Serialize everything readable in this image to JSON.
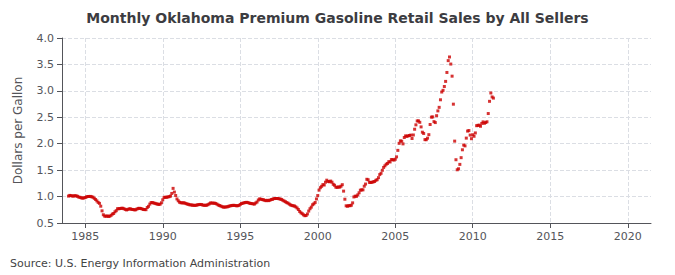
{
  "chart_data": {
    "type": "scatter",
    "title": "Monthly Oklahoma Premium Gasoline Retail Sales by All Sellers",
    "ylabel": "Dollars per Gallon",
    "annotation": "Source: U.S. Energy Information Administration",
    "color": "#CC0000",
    "marker": "square",
    "grid": true,
    "xlim": [
      1983.5,
      2021.5
    ],
    "ylim": [
      0.5,
      4.0
    ],
    "xticks": [
      1985,
      1990,
      1995,
      2000,
      2005,
      2010,
      2015,
      2020
    ],
    "yticks": [
      0.5,
      {
        "value": 1.0,
        "label": "1.0"
      },
      1.5,
      {
        "value": 2.0,
        "label": "2.0"
      },
      2.5,
      {
        "value": 3.0,
        "label": "3.0"
      },
      3.5,
      {
        "value": 4.0,
        "label": "4.0"
      }
    ],
    "x": [
      1983.917,
      1984.0,
      1984.083,
      1984.167,
      1984.25,
      1984.333,
      1984.417,
      1984.5,
      1984.583,
      1984.667,
      1984.75,
      1984.833,
      1984.917,
      1985.0,
      1985.083,
      1985.167,
      1985.25,
      1985.333,
      1985.417,
      1985.5,
      1985.583,
      1985.667,
      1985.75,
      1985.833,
      1985.917,
      1986.0,
      1986.083,
      1986.167,
      1986.25,
      1986.333,
      1986.417,
      1986.5,
      1986.583,
      1986.667,
      1986.75,
      1986.833,
      1986.917,
      1987.0,
      1987.083,
      1987.167,
      1987.25,
      1987.333,
      1987.417,
      1987.5,
      1987.583,
      1987.667,
      1987.75,
      1987.833,
      1987.917,
      1988.0,
      1988.083,
      1988.167,
      1988.25,
      1988.333,
      1988.417,
      1988.5,
      1988.583,
      1988.667,
      1988.75,
      1988.833,
      1988.917,
      1989.0,
      1989.083,
      1989.167,
      1989.25,
      1989.333,
      1989.417,
      1989.5,
      1989.583,
      1989.667,
      1989.75,
      1989.833,
      1989.917,
      1990.0,
      1990.083,
      1990.167,
      1990.25,
      1990.333,
      1990.417,
      1990.5,
      1990.583,
      1990.667,
      1990.75,
      1990.833,
      1990.917,
      1991.0,
      1991.083,
      1991.167,
      1991.25,
      1991.333,
      1991.417,
      1991.5,
      1991.583,
      1991.667,
      1991.75,
      1991.833,
      1991.917,
      1992.0,
      1992.083,
      1992.167,
      1992.25,
      1992.333,
      1992.417,
      1992.5,
      1992.583,
      1992.667,
      1992.75,
      1992.833,
      1992.917,
      1993.0,
      1993.083,
      1993.167,
      1993.25,
      1993.333,
      1993.417,
      1993.5,
      1993.583,
      1993.667,
      1993.75,
      1993.833,
      1993.917,
      1994.0,
      1994.083,
      1994.167,
      1994.25,
      1994.333,
      1994.417,
      1994.5,
      1994.583,
      1994.667,
      1994.75,
      1994.833,
      1994.917,
      1995.0,
      1995.083,
      1995.167,
      1995.25,
      1995.333,
      1995.417,
      1995.5,
      1995.583,
      1995.667,
      1995.75,
      1995.833,
      1995.917,
      1996.0,
      1996.083,
      1996.167,
      1996.25,
      1996.333,
      1996.417,
      1996.5,
      1996.583,
      1996.667,
      1996.75,
      1996.833,
      1996.917,
      1997.0,
      1997.083,
      1997.167,
      1997.25,
      1997.333,
      1997.417,
      1997.5,
      1997.583,
      1997.667,
      1997.75,
      1997.833,
      1997.917,
      1998.0,
      1998.083,
      1998.167,
      1998.25,
      1998.333,
      1998.417,
      1998.5,
      1998.583,
      1998.667,
      1998.75,
      1998.833,
      1998.917,
      1999.0,
      1999.083,
      1999.167,
      1999.25,
      1999.333,
      1999.417,
      1999.5,
      1999.583,
      1999.667,
      1999.75,
      1999.833,
      1999.917,
      2000.0,
      2000.083,
      2000.167,
      2000.25,
      2000.333,
      2000.417,
      2000.5,
      2000.583,
      2000.667,
      2000.75,
      2000.833,
      2000.917,
      2001.0,
      2001.083,
      2001.167,
      2001.25,
      2001.333,
      2001.417,
      2001.5,
      2001.583,
      2001.667,
      2001.75,
      2001.833,
      2001.917,
      2002.0,
      2002.083,
      2002.167,
      2002.25,
      2002.333,
      2002.417,
      2002.5,
      2002.583,
      2002.667,
      2002.75,
      2002.833,
      2002.917,
      2003.0,
      2003.083,
      2003.167,
      2003.25,
      2003.333,
      2003.417,
      2003.5,
      2003.583,
      2003.667,
      2003.75,
      2003.833,
      2003.917,
      2004.0,
      2004.083,
      2004.167,
      2004.25,
      2004.333,
      2004.417,
      2004.5,
      2004.583,
      2004.667,
      2004.75,
      2004.833,
      2004.917,
      2005.0,
      2005.083,
      2005.167,
      2005.25,
      2005.333,
      2005.417,
      2005.5,
      2005.583,
      2005.667,
      2005.75,
      2005.833,
      2005.917,
      2006.0,
      2006.083,
      2006.167,
      2006.25,
      2006.333,
      2006.417,
      2006.5,
      2006.583,
      2006.667,
      2006.75,
      2006.833,
      2006.917,
      2007.0,
      2007.083,
      2007.167,
      2007.25,
      2007.333,
      2007.417,
      2007.5,
      2007.583,
      2007.667,
      2007.75,
      2007.833,
      2007.917,
      2008.0,
      2008.083,
      2008.167,
      2008.25,
      2008.333,
      2008.417,
      2008.5,
      2008.583,
      2008.667,
      2008.75,
      2008.833,
      2008.917,
      2009.0,
      2009.083,
      2009.167,
      2009.25,
      2009.333,
      2009.417,
      2009.5,
      2009.583,
      2009.667,
      2009.75,
      2009.833,
      2009.917,
      2010.0,
      2010.083,
      2010.167,
      2010.25,
      2010.333,
      2010.417,
      2010.5,
      2010.583,
      2010.667,
      2010.75,
      2010.833,
      2010.917,
      2011.0,
      2011.083,
      2011.167,
      2011.25,
      2011.333
    ],
    "values": [
      1.009,
      1.022,
      1.017,
      1.011,
      1.01,
      1.017,
      1.013,
      1.005,
      0.99,
      0.985,
      0.975,
      0.971,
      0.974,
      0.982,
      0.995,
      1.001,
      1.002,
      1.003,
      0.996,
      0.988,
      0.967,
      0.945,
      0.918,
      0.89,
      0.871,
      0.818,
      0.73,
      0.656,
      0.631,
      0.627,
      0.634,
      0.624,
      0.629,
      0.645,
      0.669,
      0.68,
      0.712,
      0.733,
      0.77,
      0.769,
      0.774,
      0.778,
      0.779,
      0.77,
      0.757,
      0.747,
      0.757,
      0.768,
      0.767,
      0.757,
      0.756,
      0.749,
      0.75,
      0.764,
      0.776,
      0.777,
      0.775,
      0.766,
      0.755,
      0.754,
      0.752,
      0.793,
      0.815,
      0.858,
      0.887,
      0.886,
      0.878,
      0.872,
      0.863,
      0.858,
      0.85,
      0.857,
      0.883,
      0.939,
      0.984,
      0.987,
      0.987,
      0.993,
      0.999,
      1.009,
      1.059,
      1.155,
      1.085,
      1.02,
      0.955,
      0.92,
      0.893,
      0.884,
      0.88,
      0.882,
      0.878,
      0.867,
      0.858,
      0.853,
      0.843,
      0.843,
      0.836,
      0.836,
      0.832,
      0.837,
      0.844,
      0.848,
      0.851,
      0.849,
      0.839,
      0.835,
      0.835,
      0.836,
      0.847,
      0.862,
      0.879,
      0.878,
      0.875,
      0.875,
      0.87,
      0.856,
      0.84,
      0.83,
      0.82,
      0.808,
      0.801,
      0.8,
      0.805,
      0.806,
      0.815,
      0.823,
      0.829,
      0.832,
      0.835,
      0.831,
      0.826,
      0.827,
      0.832,
      0.851,
      0.869,
      0.875,
      0.882,
      0.888,
      0.891,
      0.886,
      0.876,
      0.87,
      0.867,
      0.862,
      0.858,
      0.88,
      0.897,
      0.935,
      0.956,
      0.95,
      0.943,
      0.939,
      0.929,
      0.922,
      0.929,
      0.923,
      0.931,
      0.945,
      0.948,
      0.961,
      0.963,
      0.964,
      0.964,
      0.959,
      0.952,
      0.946,
      0.929,
      0.915,
      0.902,
      0.886,
      0.875,
      0.857,
      0.841,
      0.832,
      0.825,
      0.821,
      0.805,
      0.784,
      0.755,
      0.719,
      0.693,
      0.676,
      0.654,
      0.638,
      0.642,
      0.671,
      0.726,
      0.77,
      0.8,
      0.845,
      0.863,
      0.889,
      0.955,
      1.019,
      1.122,
      1.168,
      1.194,
      1.226,
      1.219,
      1.272,
      1.31,
      1.285,
      1.28,
      1.293,
      1.272,
      1.232,
      1.214,
      1.178,
      1.173,
      1.183,
      1.178,
      1.196,
      1.225,
      1.103,
      0.95,
      0.825,
      0.817,
      0.829,
      0.827,
      0.836,
      0.881,
      0.993,
      1.008,
      1.005,
      1.032,
      1.072,
      1.121,
      1.127,
      1.127,
      1.196,
      1.237,
      1.327,
      1.318,
      1.268,
      1.267,
      1.271,
      1.279,
      1.285,
      1.308,
      1.319,
      1.358,
      1.416,
      1.44,
      1.497,
      1.551,
      1.582,
      1.612,
      1.627,
      1.66,
      1.655,
      1.7,
      1.698,
      1.69,
      1.706,
      1.751,
      1.874,
      2.007,
      2.054,
      2.047,
      1.997,
      2.118,
      2.148,
      2.139,
      2.149,
      2.155,
      2.163,
      2.099,
      2.165,
      2.274,
      2.357,
      2.431,
      2.432,
      2.405,
      2.318,
      2.218,
      2.194,
      2.077,
      2.076,
      2.105,
      2.171,
      2.363,
      2.503,
      2.507,
      2.418,
      2.4,
      2.53,
      2.621,
      2.688,
      2.831,
      2.978,
      3.01,
      3.083,
      3.179,
      3.348,
      3.572,
      3.641,
      3.507,
      3.278,
      2.748,
      2.049,
      1.697,
      1.507,
      1.526,
      1.609,
      1.736,
      1.885,
      1.975,
      1.959,
      2.106,
      2.239,
      2.249,
      2.163,
      2.095,
      2.17,
      2.141,
      2.204,
      2.341,
      2.347,
      2.351,
      2.33,
      2.384,
      2.413,
      2.386,
      2.401,
      2.415,
      2.571,
      2.802,
      2.96,
      2.885,
      2.863
    ]
  }
}
